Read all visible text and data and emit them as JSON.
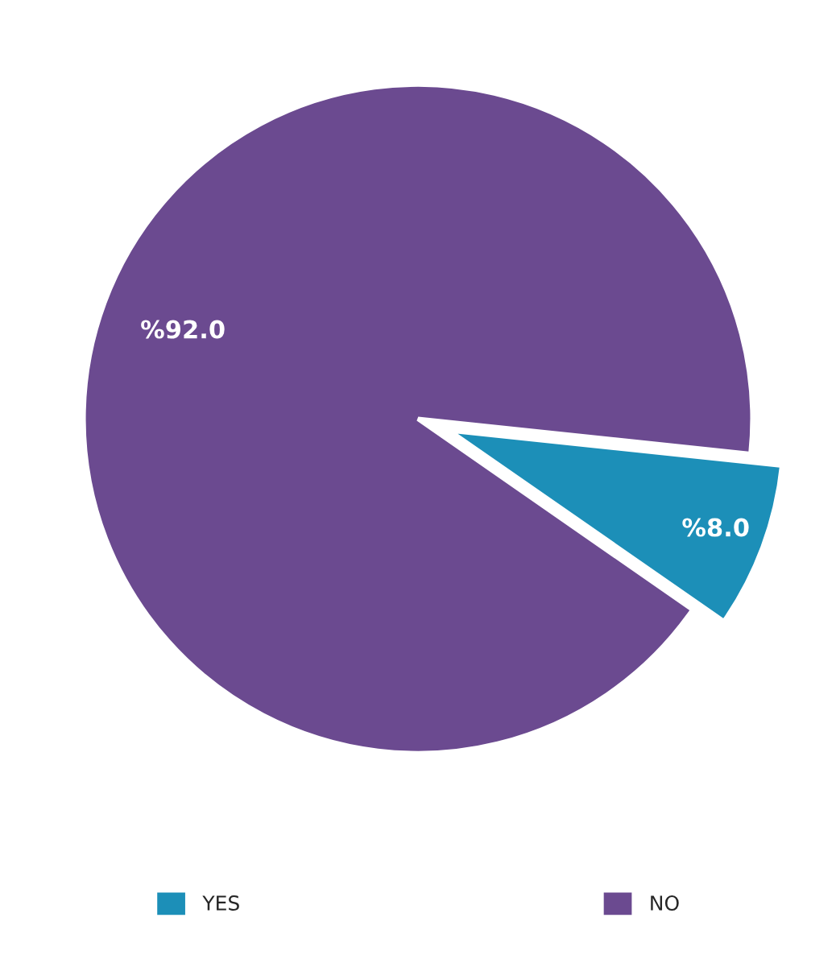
{
  "chart_data": {
    "type": "pie",
    "categories": [
      "YES",
      "NO"
    ],
    "values": [
      8.0,
      92.0
    ],
    "colors": [
      "#1c8fb8",
      "#6b4a90"
    ],
    "value_labels": [
      "%8.0",
      "%92.0"
    ],
    "legend": "bottom"
  }
}
